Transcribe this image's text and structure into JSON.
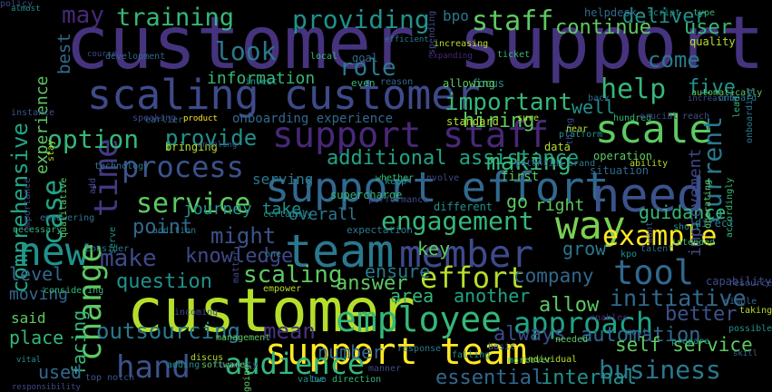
{
  "words": [
    {
      "text": "customer support",
      "color": "#46337e",
      "angle": 0
    },
    {
      "text": "customer",
      "color": "#b5de2b",
      "angle": 0
    },
    {
      "text": "team",
      "color": "#2a788e",
      "angle": 0
    },
    {
      "text": "scaling customer",
      "color": "#3e4a89",
      "angle": 0
    },
    {
      "text": "support effort",
      "color": "#31688e",
      "angle": 0
    },
    {
      "text": "support staff",
      "color": "#482878",
      "angle": 0
    },
    {
      "text": "support team",
      "color": "#fde725",
      "angle": 0
    },
    {
      "text": "need",
      "color": "#3b528b",
      "angle": 0
    },
    {
      "text": "scale",
      "color": "#5ec962",
      "angle": 0
    },
    {
      "text": "employee",
      "color": "#35b779",
      "angle": 0
    },
    {
      "text": "member",
      "color": "#3e4a89",
      "angle": 0
    },
    {
      "text": "tool",
      "color": "#31688e",
      "angle": 0
    },
    {
      "text": "way",
      "color": "#7ad151",
      "angle": 0
    },
    {
      "text": "new",
      "color": "#21918c",
      "angle": 0
    },
    {
      "text": "time",
      "color": "#443983",
      "angle": 90
    },
    {
      "text": "change",
      "color": "#5ec962",
      "angle": 90
    },
    {
      "text": "hand",
      "color": "#3b528b",
      "angle": 0
    },
    {
      "text": "approach",
      "color": "#20a486",
      "angle": 0
    },
    {
      "text": "audience",
      "color": "#35b779",
      "angle": 0
    },
    {
      "text": "effort",
      "color": "#b5de2b",
      "angle": 0
    },
    {
      "text": "process",
      "color": "#3b528b",
      "angle": 0
    },
    {
      "text": "service",
      "color": "#5ec962",
      "angle": 0
    },
    {
      "text": "example",
      "color": "#fde725",
      "angle": 0
    },
    {
      "text": "current",
      "color": "#2a788e",
      "angle": 90
    },
    {
      "text": "engagement",
      "color": "#35b779",
      "angle": 0
    },
    {
      "text": "business",
      "color": "#2a788e",
      "angle": 0
    },
    {
      "text": "help",
      "color": "#35b779",
      "angle": 0
    },
    {
      "text": "staff",
      "color": "#5ec962",
      "angle": 0
    },
    {
      "text": "training",
      "color": "#35b779",
      "angle": 0
    },
    {
      "text": "providing",
      "color": "#21918c",
      "angle": 0
    },
    {
      "text": "might",
      "color": "#3b528b",
      "angle": 0
    },
    {
      "text": "initiative",
      "color": "#31688e",
      "angle": 0
    },
    {
      "text": "comprehensive",
      "color": "#20a486",
      "angle": 90
    },
    {
      "text": "case",
      "color": "#20a486",
      "angle": 90
    },
    {
      "text": "option",
      "color": "#35b779",
      "angle": 0
    },
    {
      "text": "provide",
      "color": "#21918c",
      "angle": 0
    },
    {
      "text": "important",
      "color": "#35b779",
      "angle": 0
    },
    {
      "text": "additional assistance",
      "color": "#20a486",
      "angle": 0
    },
    {
      "text": "making",
      "color": "#35b779",
      "angle": 0
    },
    {
      "text": "make",
      "color": "#3e4a89",
      "angle": 0
    },
    {
      "text": "question",
      "color": "#21918c",
      "angle": 0
    },
    {
      "text": "scaling",
      "color": "#5ec962",
      "angle": 0
    },
    {
      "text": "outsourcing",
      "color": "#2a788e",
      "angle": 0
    },
    {
      "text": "mean",
      "color": "#46337e",
      "angle": 0
    },
    {
      "text": "knowledge",
      "color": "#3e4a89",
      "angle": 0
    },
    {
      "text": "company",
      "color": "#31688e",
      "angle": 0
    },
    {
      "text": "allow",
      "color": "#5ec962",
      "angle": 0
    },
    {
      "text": "automation",
      "color": "#31688e",
      "angle": 0
    },
    {
      "text": "facing",
      "color": "#35b779",
      "angle": 90
    },
    {
      "text": "self service",
      "color": "#5ec962",
      "angle": 0
    },
    {
      "text": "essential",
      "color": "#31688e",
      "angle": 0
    },
    {
      "text": "internal",
      "color": "#21918c",
      "angle": 0
    },
    {
      "text": "may",
      "color": "#482878",
      "angle": 0
    },
    {
      "text": "look",
      "color": "#2a788e",
      "angle": 0
    },
    {
      "text": "role",
      "color": "#2a788e",
      "angle": 0
    },
    {
      "text": "come",
      "color": "#2a788e",
      "angle": 0
    },
    {
      "text": "deliver",
      "color": "#21918c",
      "angle": 0
    },
    {
      "text": "continue",
      "color": "#5ec962",
      "angle": 0
    },
    {
      "text": "user",
      "color": "#35b779",
      "angle": 0
    },
    {
      "text": "hiring",
      "color": "#5ec962",
      "angle": 0
    },
    {
      "text": "five",
      "color": "#21918c",
      "angle": 0
    },
    {
      "text": "information",
      "color": "#35b779",
      "angle": 0
    },
    {
      "text": "bpo",
      "color": "#2a788e",
      "angle": 0
    },
    {
      "text": "best",
      "color": "#31688e",
      "angle": 90
    },
    {
      "text": "experience",
      "color": "#5ec962",
      "angle": 90
    },
    {
      "text": "journey take",
      "color": "#21918c",
      "angle": 0
    },
    {
      "text": "serving",
      "color": "#2a788e",
      "angle": 0
    },
    {
      "text": "point",
      "color": "#31688e",
      "angle": 0
    },
    {
      "text": "overall",
      "color": "#2a788e",
      "angle": 0
    },
    {
      "text": "guidance",
      "color": "#35b779",
      "angle": 0
    },
    {
      "text": "improvement",
      "color": "#3e4a89",
      "angle": 90
    },
    {
      "text": "right",
      "color": "#5ec962",
      "angle": 0
    },
    {
      "text": "grow",
      "color": "#2a788e",
      "angle": 0
    },
    {
      "text": "key",
      "color": "#5ec962",
      "angle": 0
    },
    {
      "text": "ensure",
      "color": "#2a788e",
      "angle": 0
    },
    {
      "text": "answer",
      "color": "#5ec962",
      "angle": 0
    },
    {
      "text": "area",
      "color": "#35b779",
      "angle": 0
    },
    {
      "text": "another",
      "color": "#20a486",
      "angle": 0
    },
    {
      "text": "better",
      "color": "#3b528b",
      "angle": 0
    },
    {
      "text": "always",
      "color": "#3e4a89",
      "angle": 0
    },
    {
      "text": "level",
      "color": "#31688e",
      "angle": 0
    },
    {
      "text": "moving",
      "color": "#31688e",
      "angle": 0
    },
    {
      "text": "said",
      "color": "#5ec962",
      "angle": 0
    },
    {
      "text": "place",
      "color": "#35b779",
      "angle": 0
    },
    {
      "text": "used",
      "color": "#31688e",
      "angle": 0
    },
    {
      "text": "number",
      "color": "#31688e",
      "angle": 0
    },
    {
      "text": "well",
      "color": "#21918c",
      "angle": 0
    },
    {
      "text": "onboarding experience",
      "color": "#31688e",
      "angle": 0
    },
    {
      "text": "supercharge",
      "color": "#35b779",
      "angle": 0
    },
    {
      "text": "different",
      "color": "#21918c",
      "angle": 0
    },
    {
      "text": "go",
      "color": "#5ec962",
      "angle": 0
    },
    {
      "text": "first",
      "color": "#5ec962",
      "angle": 0
    },
    {
      "text": "data",
      "color": "#b5de2b",
      "angle": 0
    },
    {
      "text": "standard",
      "color": "#b5de2b",
      "angle": 0
    },
    {
      "text": "expectation",
      "color": "#2a788e",
      "angle": 0
    },
    {
      "text": "operation",
      "color": "#5ec962",
      "angle": 0
    },
    {
      "text": "situation",
      "color": "#31688e",
      "angle": 0
    },
    {
      "text": "technology",
      "color": "#2a788e",
      "angle": 0
    },
    {
      "text": "bringing",
      "color": "#b5de2b",
      "angle": 0
    },
    {
      "text": "enabling",
      "color": "#3b528b",
      "angle": 0
    },
    {
      "text": "earlier",
      "color": "#31688e",
      "angle": 0
    },
    {
      "text": "speaking",
      "color": "#3e4a89",
      "angle": 0
    },
    {
      "text": "product",
      "color": "#fde725",
      "angle": 0
    },
    {
      "text": "invest",
      "color": "#21918c",
      "angle": 0
    },
    {
      "text": "even",
      "color": "#35b779",
      "angle": 0
    },
    {
      "text": "reason",
      "color": "#31688e",
      "angle": 0
    },
    {
      "text": "focus",
      "color": "#21918c",
      "angle": 0
    },
    {
      "text": "allowing",
      "color": "#5ec962",
      "angle": 0
    },
    {
      "text": "local",
      "color": "#35b779",
      "angle": 0
    },
    {
      "text": "goal",
      "color": "#31688e",
      "angle": 0
    },
    {
      "text": "development",
      "color": "#31688e",
      "angle": 0
    },
    {
      "text": "course",
      "color": "#3e4a89",
      "angle": 0
    },
    {
      "text": "almost",
      "color": "#21918c",
      "angle": 0
    },
    {
      "text": "efficient",
      "color": "#2a788e",
      "angle": 0
    },
    {
      "text": "increasing",
      "color": "#b5de2b",
      "angle": 0
    },
    {
      "text": "ticket",
      "color": "#35b779",
      "angle": 0
    },
    {
      "text": "expanding",
      "color": "#482878",
      "angle": 0
    },
    {
      "text": "spending",
      "color": "#3e4a89",
      "angle": 90
    },
    {
      "text": "helpdesk",
      "color": "#31688e",
      "angle": 0
    },
    {
      "text": "script",
      "color": "#21918c",
      "angle": 0
    },
    {
      "text": "type",
      "color": "#35b779",
      "angle": 0
    },
    {
      "text": "quality",
      "color": "#b5de2b",
      "angle": 0
    },
    {
      "text": "automatically",
      "color": "#5ec962",
      "angle": 0
    },
    {
      "text": "hundred",
      "color": "#35b779",
      "angle": 0
    },
    {
      "text": "increasing",
      "color": "#3b528b",
      "angle": 0
    },
    {
      "text": "crucial",
      "color": "#3e4a89",
      "angle": 0
    },
    {
      "text": "reach",
      "color": "#3b528b",
      "angle": 0
    },
    {
      "text": "lead",
      "color": "#35b779",
      "angle": 90
    },
    {
      "text": "onboarding",
      "color": "#2a788e",
      "angle": 90
    },
    {
      "text": "platform",
      "color": "#21918c",
      "angle": 0
    },
    {
      "text": "potential",
      "color": "#3e4a89",
      "angle": 0
    },
    {
      "text": "brand",
      "color": "#2a788e",
      "angle": 0
    },
    {
      "text": "ability",
      "color": "#b5de2b",
      "angle": 0
    },
    {
      "text": "operating",
      "color": "#5ec962",
      "angle": 90
    },
    {
      "text": "accordingly",
      "color": "#35b779",
      "angle": 90
    },
    {
      "text": "direct",
      "color": "#2a788e",
      "angle": 0
    },
    {
      "text": "short",
      "color": "#21918c",
      "angle": 0
    },
    {
      "text": "intended",
      "color": "#35b779",
      "angle": 0
    },
    {
      "text": "want",
      "color": "#3e4a89",
      "angle": 90
    },
    {
      "text": "talent",
      "color": "#31688e",
      "angle": 0
    },
    {
      "text": "kpo",
      "color": "#21918c",
      "angle": 0
    },
    {
      "text": "capability",
      "color": "#3e4a89",
      "angle": 0
    },
    {
      "text": "resource",
      "color": "#3b528b",
      "angle": 0
    },
    {
      "text": "taking",
      "color": "#b5de2b",
      "angle": 0
    },
    {
      "text": "simple",
      "color": "#31688e",
      "angle": 0
    },
    {
      "text": "possible",
      "color": "#21918c",
      "angle": 0
    },
    {
      "text": "prepare",
      "color": "#21918c",
      "angle": 0
    },
    {
      "text": "cost",
      "color": "#31688e",
      "angle": 0
    },
    {
      "text": "enables",
      "color": "#482878",
      "angle": 0
    },
    {
      "text": "needed",
      "color": "#5ec962",
      "angle": 0
    },
    {
      "text": "basic",
      "color": "#31688e",
      "angle": 0
    },
    {
      "text": "moreover",
      "color": "#35b779",
      "angle": 0
    },
    {
      "text": "individual",
      "color": "#b5de2b",
      "angle": 0
    },
    {
      "text": "falling",
      "color": "#21918c",
      "angle": 0
    },
    {
      "text": "response",
      "color": "#2a788e",
      "angle": 0
    },
    {
      "text": "direction",
      "color": "#35b779",
      "angle": 0
    },
    {
      "text": "two",
      "color": "#2a788e",
      "angle": 0
    },
    {
      "text": "value",
      "color": "#21918c",
      "angle": 0
    },
    {
      "text": "manner",
      "color": "#3e4a89",
      "angle": 0
    },
    {
      "text": "management",
      "color": "#5ec962",
      "angle": 0
    },
    {
      "text": "empower",
      "color": "#b5de2b",
      "angle": 0
    },
    {
      "text": "incoming",
      "color": "#3e4a89",
      "angle": 0
    },
    {
      "text": "matter",
      "color": "#3e4a89",
      "angle": 90
    },
    {
      "text": "one",
      "color": "#2a788e",
      "angle": 0
    },
    {
      "text": "performance",
      "color": "#3e4a89",
      "angle": 0
    },
    {
      "text": "keep",
      "color": "#21918c",
      "angle": 0
    },
    {
      "text": "involve",
      "color": "#3e4a89",
      "angle": 0
    },
    {
      "text": "whether",
      "color": "#35b779",
      "angle": 0
    },
    {
      "text": "certainly",
      "color": "#21918c",
      "angle": 0
    },
    {
      "text": "addition",
      "color": "#2a788e",
      "angle": 0
    },
    {
      "text": "consider",
      "color": "#2a788e",
      "angle": 0
    },
    {
      "text": "necessary",
      "color": "#35b779",
      "angle": 0
    },
    {
      "text": "considering",
      "color": "#35b779",
      "angle": 0
    },
    {
      "text": "empowering",
      "color": "#2a788e",
      "angle": 0
    },
    {
      "text": "qualitative",
      "color": "#5ec962",
      "angle": 90
    },
    {
      "text": "importance",
      "color": "#3e4a89",
      "angle": 90
    },
    {
      "text": "stay",
      "color": "#b5de2b",
      "angle": 90
    },
    {
      "text": "add",
      "color": "#3e4a89",
      "angle": 90
    },
    {
      "text": "instance",
      "color": "#3b528b",
      "angle": 0
    },
    {
      "text": "serve",
      "color": "#21918c",
      "angle": 90
    },
    {
      "text": "going",
      "color": "#5ec962",
      "angle": 90
    },
    {
      "text": "capacity",
      "color": "#443983",
      "angle": 0
    },
    {
      "text": "software",
      "color": "#5ec962",
      "angle": 0
    },
    {
      "text": "adding",
      "color": "#21918c",
      "angle": 0
    },
    {
      "text": "discus",
      "color": "#b5de2b",
      "angle": 0
    },
    {
      "text": "vital",
      "color": "#21918c",
      "angle": 0
    },
    {
      "text": "top notch",
      "color": "#3b528b",
      "angle": 0
    },
    {
      "text": "responsibility",
      "color": "#3e4a89",
      "angle": 0
    },
    {
      "text": "thing",
      "color": "#3e4a89",
      "angle": 90
    },
    {
      "text": "sure",
      "color": "#b5de2b",
      "angle": 0
    },
    {
      "text": "back",
      "color": "#31688e",
      "angle": 0
    },
    {
      "text": "onboard",
      "color": "#2a788e",
      "angle": 0
    },
    {
      "text": "near",
      "color": "#b5de2b",
      "angle": 0
    },
    {
      "text": "skill",
      "color": "#31688e",
      "angle": 0
    },
    {
      "text": "policy",
      "color": "#3e4a89",
      "angle": 0
    }
  ]
}
